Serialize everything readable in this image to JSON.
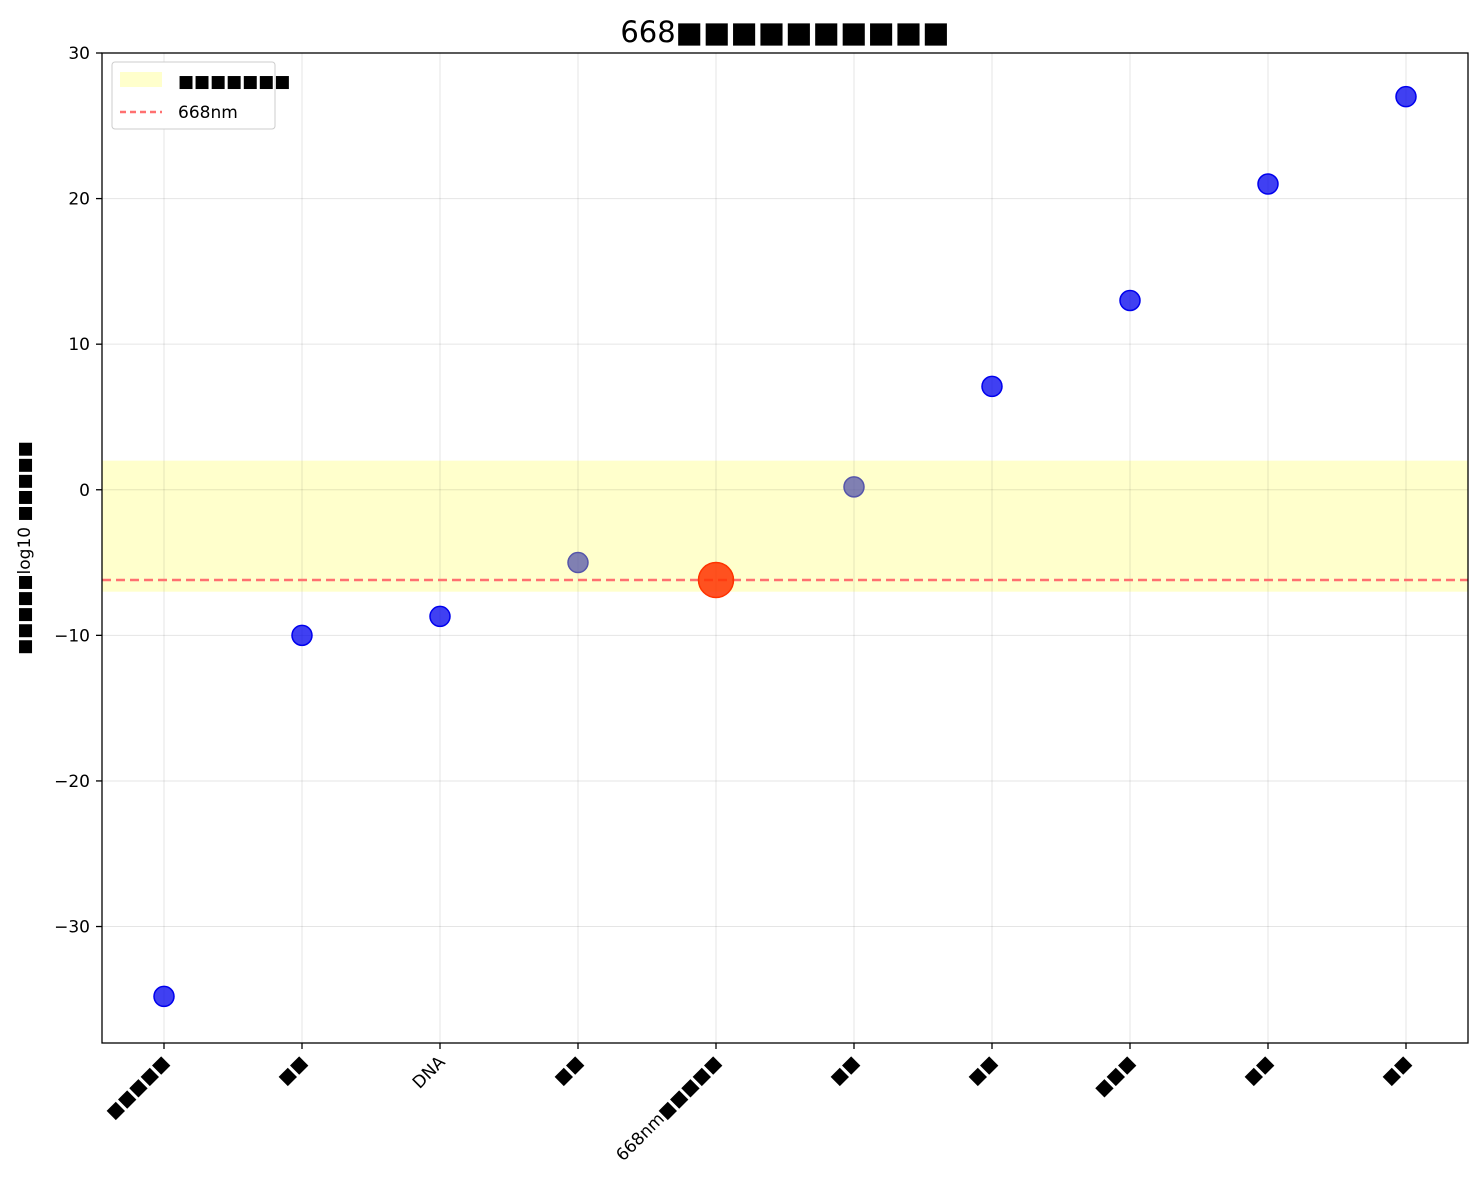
{
  "chart_data": {
    "type": "scatter",
    "title": "668■■■■■■■■■■",
    "xlabel": "",
    "ylabel": "■■■■■log10 ■■■■■",
    "categories": [
      "■■■■■",
      "■■",
      "DNA",
      "■■",
      "668nm■■■■■",
      "■■",
      "■■",
      "■■■",
      "■■",
      "■■"
    ],
    "y": [
      -34.8,
      -10.0,
      -8.7,
      -5.0,
      -6.2,
      0.2,
      7.1,
      13.0,
      21.0,
      27.0
    ],
    "highlight_index": 4,
    "ylim": [
      -38,
      30
    ],
    "yticks": [
      -30,
      -20,
      -10,
      0,
      10,
      20,
      30
    ],
    "grid": true,
    "legend_position": "top-left",
    "band": {
      "y0": -7.0,
      "y1": 2.0,
      "label": "■■■■■■■",
      "color": "#ffffcc"
    },
    "reference_line": {
      "y": -6.2,
      "label": "668nm",
      "color": "#ff7070"
    },
    "colors": {
      "points": "#0000ee",
      "highlight": "#ff3300",
      "band_point": "#5555aa"
    }
  }
}
